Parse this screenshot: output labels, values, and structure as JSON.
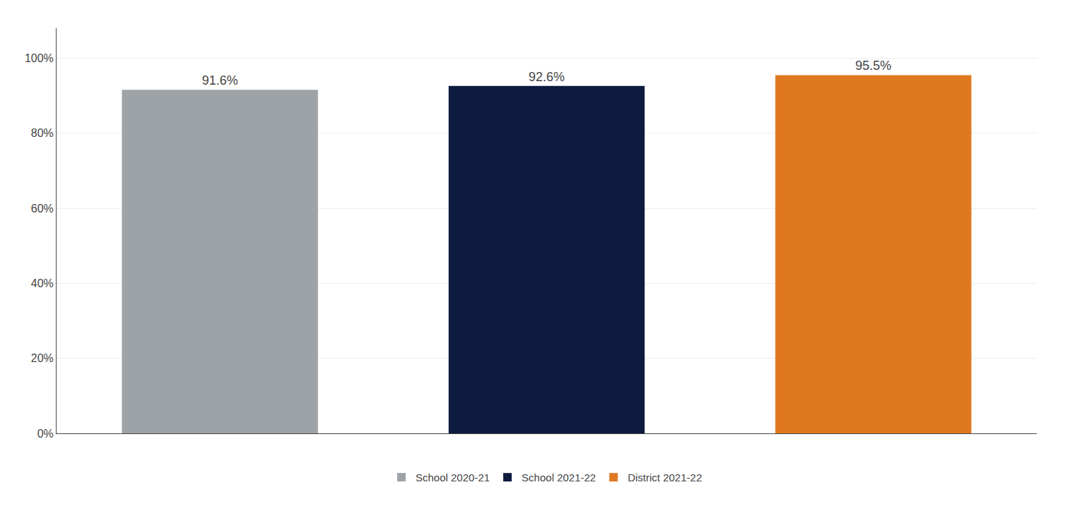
{
  "chart_data": {
    "type": "bar",
    "categories": [
      "School 2020-21",
      "School 2021-22",
      "District 2021-22"
    ],
    "values": [
      0.916,
      0.926,
      0.955
    ],
    "value_labels": [
      "91.6%",
      "92.6%",
      "95.5%"
    ],
    "colors": [
      "#9EA3A8",
      "#0D1B3E",
      "#E07820"
    ],
    "ylim": [
      0,
      1.08
    ],
    "yticks": [
      {
        "value": 0,
        "label": "0%"
      },
      {
        "value": 0.2,
        "label": "20%"
      },
      {
        "value": 0.4,
        "label": "40%"
      },
      {
        "value": 0.6,
        "label": "60%"
      },
      {
        "value": 0.8,
        "label": "80%"
      },
      {
        "value": 1.0,
        "label": "100%"
      }
    ],
    "grid": true,
    "legend": "bottom",
    "data_labels": true,
    "tick_labels": "y"
  }
}
